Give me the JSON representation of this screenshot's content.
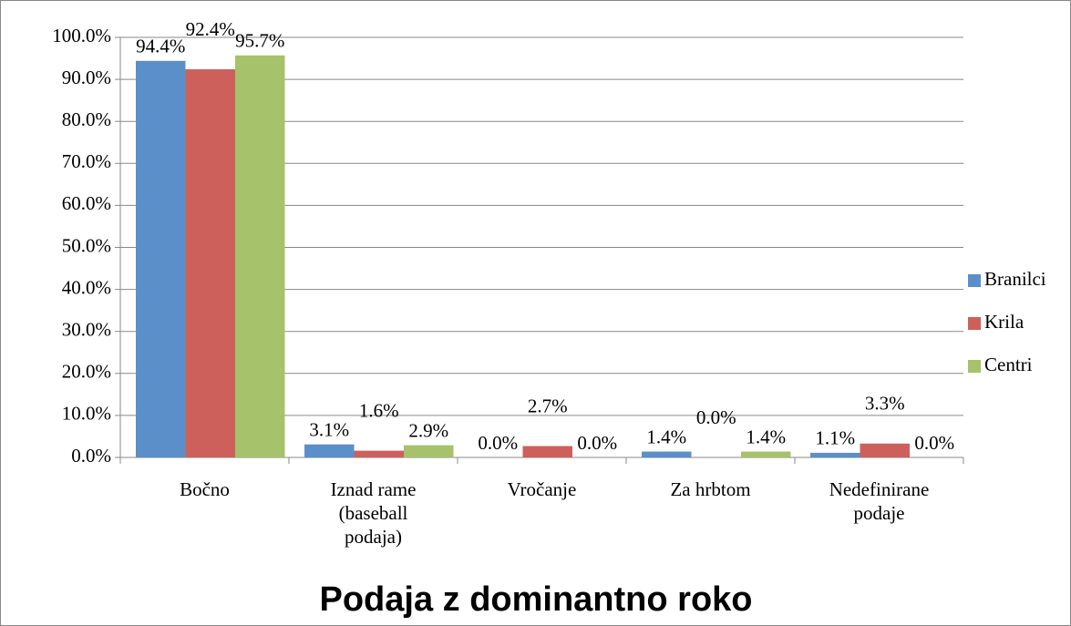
{
  "chart_data": {
    "type": "bar",
    "title": "Podaja z dominantno roko",
    "categories": [
      "Bočno",
      "Iznad rame (baseball podaja)",
      "Vročanje",
      "Za hrbtom",
      "Nedefinirane podaje"
    ],
    "series": [
      {
        "name": "Branilci",
        "color": "#5b8fc9",
        "values": [
          94.4,
          3.1,
          0,
          1.4,
          1.1
        ],
        "value_labels": [
          "94.4%",
          "3.1%",
          "0.0%",
          "1.4%",
          "1.1%"
        ]
      },
      {
        "name": "Krila",
        "color": "#cd605a",
        "values": [
          92.4,
          1.6,
          2.7,
          0,
          3.3
        ],
        "value_labels": [
          "92.4%",
          "1.6%",
          "2.7%",
          "0.0%",
          "3.3%"
        ]
      },
      {
        "name": "Centri",
        "color": "#a6c26a",
        "values": [
          95.7,
          2.9,
          0,
          1.4,
          0
        ],
        "value_labels": [
          "95.7%",
          "2.9%",
          "0.0%",
          "1.4%",
          "0.0%"
        ]
      }
    ],
    "ylim": [
      0,
      100
    ],
    "yticks": [
      {
        "value": 0,
        "label": "0.0%"
      },
      {
        "value": 10,
        "label": "10.0%"
      },
      {
        "value": 20,
        "label": "20.0%"
      },
      {
        "value": 30,
        "label": "30.0%"
      },
      {
        "value": 40,
        "label": "40.0%"
      },
      {
        "value": 50,
        "label": "50.0%"
      },
      {
        "value": 60,
        "label": "60.0%"
      },
      {
        "value": 70,
        "label": "70.0%"
      },
      {
        "value": 80,
        "label": "80.0%"
      },
      {
        "value": 90,
        "label": "90.0%"
      },
      {
        "value": 100,
        "label": "100.0%"
      }
    ],
    "grid": true,
    "legend": "right"
  }
}
